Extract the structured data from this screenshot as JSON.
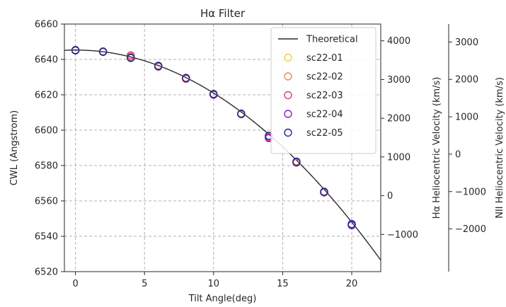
{
  "chart_data": {
    "type": "scatter",
    "title": "Hα Filter",
    "xlabel": "Tilt Angle(deg)",
    "ylabel": "CWL (Angstrom)",
    "xlim": [
      -0.8,
      22.1
    ],
    "ylim": [
      6520,
      6660
    ],
    "x_ticks": [
      0,
      5,
      10,
      15,
      20
    ],
    "y_ticks": [
      6520,
      6540,
      6560,
      6580,
      6600,
      6620,
      6640,
      6660
    ],
    "grid": true,
    "legend_position": "top-right",
    "theoretical": {
      "name": "Theoretical",
      "color": "#2b2b2b",
      "cwl0": 6645.3,
      "curvature": 0.24325
    },
    "series": [
      {
        "name": "sc22-01",
        "color": "#f5d33c",
        "x": [
          0,
          2,
          4,
          6,
          8,
          10,
          12,
          14,
          16,
          18,
          20
        ],
        "y": [
          6645.2,
          6644.4,
          6641.9,
          6636.3,
          6629.5,
          6620.3,
          6609.5,
          6596.5,
          6582.0,
          6565.0,
          6546.8
        ]
      },
      {
        "name": "sc22-02",
        "color": "#f08a4b",
        "x": [
          0,
          2,
          4,
          6,
          8,
          10,
          12,
          14,
          16,
          18,
          20
        ],
        "y": [
          6645.0,
          6644.2,
          6641.5,
          6635.8,
          6629.0,
          6620.0,
          6609.0,
          6596.0,
          6581.5,
          6564.7,
          6546.5
        ]
      },
      {
        "name": "sc22-03",
        "color": "#d6447a",
        "x": [
          0,
          2,
          4,
          6,
          8,
          10,
          12,
          14,
          16,
          18,
          20
        ],
        "y": [
          6645.1,
          6644.5,
          6642.3,
          6636.2,
          6629.6,
          6620.5,
          6609.2,
          6596.1,
          6581.9,
          6565.1,
          6546.4
        ]
      },
      {
        "name": "sc22-04",
        "color": "#8a1ec2",
        "x": [
          0,
          2,
          4,
          6,
          8,
          10,
          12,
          14,
          16,
          18,
          20
        ],
        "y": [
          6645.1,
          6644.3,
          6640.8,
          6636.1,
          6629.2,
          6620.1,
          6609.1,
          6595.5,
          6581.9,
          6564.9,
          6546.2
        ]
      },
      {
        "name": "sc22-05",
        "color": "#1b2a8a",
        "x": [
          0,
          2,
          4,
          6,
          8,
          10,
          12,
          14,
          16,
          18,
          20
        ],
        "y": [
          6645.3,
          6644.4,
          6641.0,
          6636.4,
          6629.4,
          6620.4,
          6609.3,
          6596.8,
          6582.2,
          6565.2,
          6546.9
        ]
      }
    ],
    "right_axis_1": {
      "label": "Hα Heliocentric Velocity (km/s)",
      "ticks": [
        -1000,
        0,
        1000,
        2000,
        3000,
        4000
      ],
      "tick_labels": [
        "−1000",
        "0",
        "1000",
        "2000",
        "3000",
        "4000"
      ],
      "lim": [
        -1962,
        4433
      ]
    },
    "right_axis_2": {
      "label": "NII Heliocentric Velocity (km/s)",
      "ticks": [
        -2000,
        -1000,
        0,
        1000,
        2000,
        3000
      ],
      "tick_labels": [
        "−2000",
        "−1000",
        "0",
        "1000",
        "2000",
        "3000"
      ],
      "lim": [
        -3142,
        3480
      ]
    }
  }
}
